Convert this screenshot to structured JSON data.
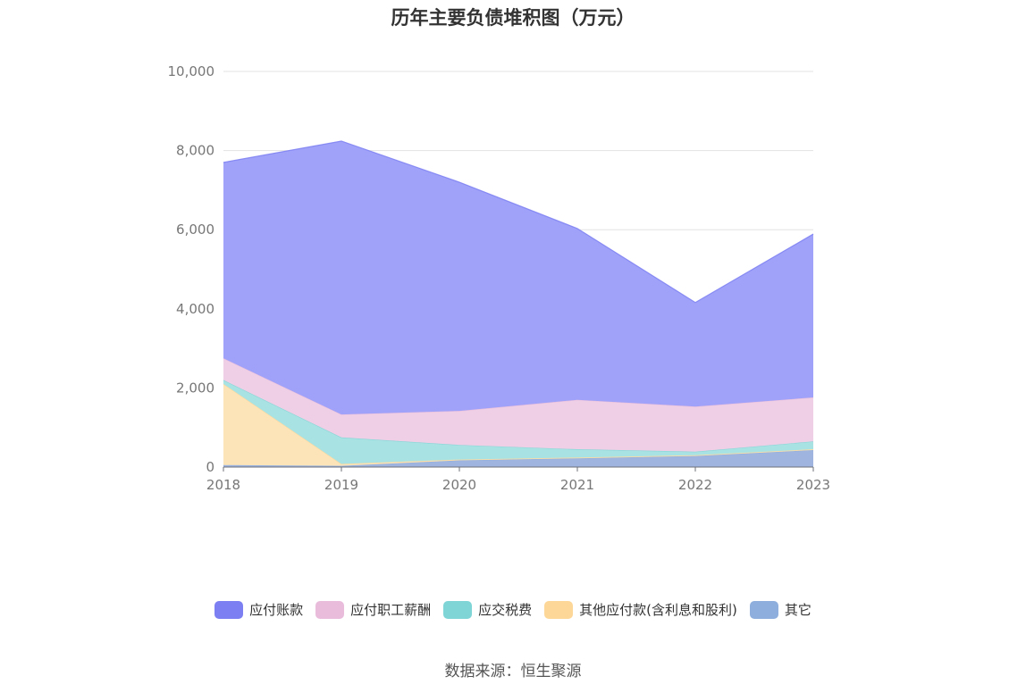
{
  "title": "历年主要负债堆积图（万元）",
  "source": "数据来源：恒生聚源",
  "chart_data": {
    "type": "area",
    "stacked": true,
    "categories": [
      "2018",
      "2019",
      "2020",
      "2021",
      "2022",
      "2023"
    ],
    "ylim": [
      0,
      10000
    ],
    "yticks": [
      0,
      2000,
      4000,
      6000,
      8000,
      10000
    ],
    "ytick_labels": [
      "0",
      "2,000",
      "4,000",
      "6,000",
      "8,000",
      "10,000"
    ],
    "grid": true,
    "legend_position": "bottom",
    "series": [
      {
        "name": "其它",
        "values": [
          50,
          30,
          170,
          220,
          280,
          430
        ],
        "color": "#8eaedd",
        "fill": "#9fb5e0"
      },
      {
        "name": "其他应付款(含利息和股利)",
        "values": [
          2050,
          50,
          20,
          20,
          20,
          20
        ],
        "color": "#fdd798",
        "fill": "#fde4b8"
      },
      {
        "name": "应交税费",
        "values": [
          100,
          670,
          370,
          210,
          90,
          200
        ],
        "color": "#7fd4d6",
        "fill": "#a9e2e3"
      },
      {
        "name": "应付职工薪酬",
        "values": [
          550,
          580,
          860,
          1250,
          1140,
          1110
        ],
        "color": "#e9bcdc",
        "fill": "#efcfe5"
      },
      {
        "name": "应付账款",
        "values": [
          4950,
          6910,
          5780,
          4330,
          2630,
          4130
        ],
        "color": "#7c7ff2",
        "fill": "#9fa2f8"
      }
    ]
  }
}
